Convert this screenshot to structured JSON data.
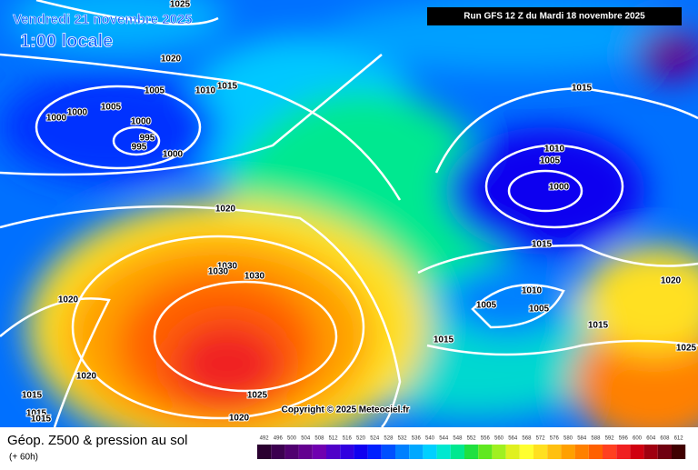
{
  "header": {
    "date": "Vendredi 21 novembre 2025",
    "time": "1:00 locale",
    "run": "Run GFS 12 Z du Mardi 18 novembre 2025",
    "copyright": "Copyright © 2025 Meteociel.fr"
  },
  "footer": {
    "title": "Géop. Z500 & pression au sol",
    "lead": "(+ 60h)"
  },
  "isobar_labels": [
    "1025",
    "1020",
    "1005",
    "1010",
    "1015",
    "1005",
    "1000",
    "1000",
    "1000",
    "995",
    "995",
    "1000",
    "1020",
    "1030",
    "1030",
    "1030",
    "1020",
    "1020",
    "1015",
    "1015",
    "1015",
    "1025",
    "1020",
    "1015",
    "1010",
    "1005",
    "1000",
    "1015",
    "1010",
    "1005",
    "1005",
    "1015",
    "1015",
    "1020",
    "1025"
  ],
  "scale": {
    "values": [
      492,
      496,
      500,
      504,
      508,
      512,
      516,
      520,
      524,
      528,
      532,
      536,
      540,
      544,
      548,
      552,
      556,
      560,
      564,
      568,
      572,
      576,
      580,
      584,
      588,
      592,
      596,
      600,
      604,
      608,
      612
    ],
    "colors": [
      "#2a0030",
      "#3c0050",
      "#500070",
      "#640090",
      "#7000b0",
      "#5000c8",
      "#3000e0",
      "#1000f0",
      "#0020ff",
      "#0050ff",
      "#0080ff",
      "#00a8ff",
      "#00d0ff",
      "#00e8d0",
      "#00e890",
      "#20e040",
      "#60e820",
      "#a0f020",
      "#e0f020",
      "#ffff30",
      "#ffe020",
      "#ffc010",
      "#ffa000",
      "#ff8000",
      "#ff6000",
      "#ff4020",
      "#f02020",
      "#d00010",
      "#a00010",
      "#700010",
      "#400000"
    ]
  }
}
